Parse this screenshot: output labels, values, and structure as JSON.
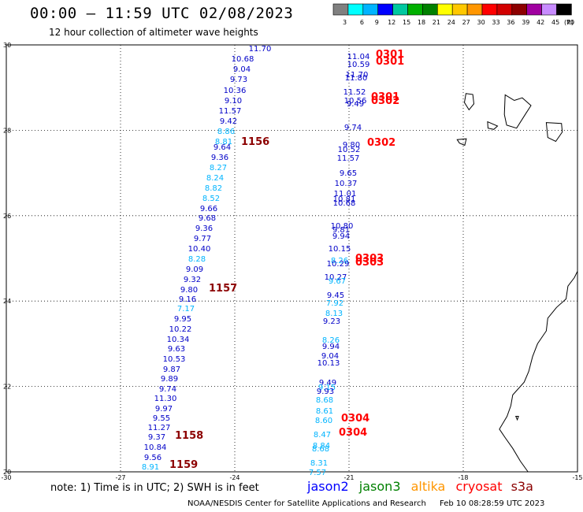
{
  "title": "00:00 – 11:59 UTC 02/08/2023",
  "subtitle": "12 hour collection of altimeter wave heights",
  "colorbar": {
    "unit": "(ft)",
    "labels": [
      "3",
      "6",
      "9",
      "12",
      "15",
      "18",
      "21",
      "24",
      "27",
      "30",
      "33",
      "36",
      "39",
      "42",
      "45",
      "70"
    ],
    "colors": [
      "#808080",
      "#00ffff",
      "#00b4ff",
      "#0000ff",
      "#00c8a0",
      "#00b000",
      "#008000",
      "#ffff00",
      "#ffc800",
      "#ff9600",
      "#ff0000",
      "#d20000",
      "#8c0000",
      "#a000a0",
      "#c88cff",
      "#000000"
    ]
  },
  "axes": {
    "x_ticks": [
      "-30",
      "-27",
      "-24",
      "-21",
      "-18",
      "-15"
    ],
    "y_ticks": [
      "30",
      "28",
      "26",
      "24",
      "22",
      "20"
    ],
    "lon_range": [
      -30,
      -15
    ],
    "lat_range": [
      20,
      30
    ]
  },
  "colors": {
    "blue": "#0000c8",
    "cyan": "#00b4ff",
    "red": "#ff0000",
    "darkred": "#8c0000"
  },
  "track_west": [
    {
      "v": "11.70",
      "c": "blue"
    },
    {
      "v": "10.68",
      "c": "blue"
    },
    {
      "v": "9.04",
      "c": "blue"
    },
    {
      "v": "9.73",
      "c": "blue"
    },
    {
      "v": "10.36",
      "c": "blue"
    },
    {
      "v": "9.10",
      "c": "blue"
    },
    {
      "v": "11.57",
      "c": "blue"
    },
    {
      "v": "9.42",
      "c": "blue"
    },
    {
      "v": "8.86",
      "c": "cyan"
    },
    {
      "v": "8.81",
      "c": "cyan"
    },
    {
      "v": "9.64",
      "c": "blue"
    },
    {
      "v": "9.36",
      "c": "blue"
    },
    {
      "v": "8.27",
      "c": "cyan"
    },
    {
      "v": "8.24",
      "c": "cyan"
    },
    {
      "v": "8.82",
      "c": "cyan"
    },
    {
      "v": "8.52",
      "c": "cyan"
    },
    {
      "v": "9.66",
      "c": "blue"
    },
    {
      "v": "9.68",
      "c": "blue"
    },
    {
      "v": "9.36",
      "c": "blue"
    },
    {
      "v": "9.77",
      "c": "blue"
    },
    {
      "v": "10.40",
      "c": "blue"
    },
    {
      "v": "8.28",
      "c": "cyan"
    },
    {
      "v": "9.09",
      "c": "blue"
    },
    {
      "v": "9.32",
      "c": "blue"
    },
    {
      "v": "9.80",
      "c": "blue"
    },
    {
      "v": "9.16",
      "c": "blue"
    },
    {
      "v": "7.17",
      "c": "cyan"
    },
    {
      "v": "9.95",
      "c": "blue"
    },
    {
      "v": "10.22",
      "c": "blue"
    },
    {
      "v": "10.34",
      "c": "blue"
    },
    {
      "v": "9.63",
      "c": "blue"
    },
    {
      "v": "10.53",
      "c": "blue"
    },
    {
      "v": "9.87",
      "c": "blue"
    },
    {
      "v": "9.89",
      "c": "blue"
    },
    {
      "v": "9.74",
      "c": "blue"
    },
    {
      "v": "11.30",
      "c": "blue"
    },
    {
      "v": "9.97",
      "c": "blue"
    },
    {
      "v": "9.55",
      "c": "blue"
    },
    {
      "v": "11.27",
      "c": "blue"
    },
    {
      "v": "9.37",
      "c": "blue"
    },
    {
      "v": "10.84",
      "c": "blue"
    },
    {
      "v": "9.56",
      "c": "blue"
    },
    {
      "v": "8.91",
      "c": "cyan"
    }
  ],
  "track_east": [
    {
      "v": "11.04",
      "c": "blue"
    },
    {
      "v": "10.59",
      "c": "blue"
    },
    {
      "v": "11.70",
      "c": "blue"
    },
    {
      "v": "11.80",
      "c": "blue"
    },
    {
      "v": "11.52",
      "c": "blue"
    },
    {
      "v": "10.56",
      "c": "blue"
    },
    {
      "v": "9.49",
      "c": "blue"
    },
    {
      "v": "9.74",
      "c": "blue"
    },
    {
      "v": "9.80",
      "c": "blue"
    },
    {
      "v": "10.52",
      "c": "blue"
    },
    {
      "v": "11.57",
      "c": "blue"
    },
    {
      "v": "9.65",
      "c": "blue"
    },
    {
      "v": "10.37",
      "c": "blue"
    },
    {
      "v": "11.01",
      "c": "blue"
    },
    {
      "v": "10.81",
      "c": "blue"
    },
    {
      "v": "10.68",
      "c": "blue"
    },
    {
      "v": "10.80",
      "c": "blue"
    },
    {
      "v": "9.81",
      "c": "blue"
    },
    {
      "v": "9.94",
      "c": "blue"
    },
    {
      "v": "10.15",
      "c": "blue"
    },
    {
      "v": "8.26",
      "c": "cyan"
    },
    {
      "v": "10.29",
      "c": "blue"
    },
    {
      "v": "10.27",
      "c": "blue"
    },
    {
      "v": "9.67",
      "c": "cyan"
    },
    {
      "v": "9.45",
      "c": "blue"
    },
    {
      "v": "7.92",
      "c": "cyan"
    },
    {
      "v": "8.13",
      "c": "cyan"
    },
    {
      "v": "9.23",
      "c": "blue"
    },
    {
      "v": "8.26",
      "c": "cyan"
    },
    {
      "v": "9.94",
      "c": "blue"
    },
    {
      "v": "9.04",
      "c": "blue"
    },
    {
      "v": "10.13",
      "c": "blue"
    },
    {
      "v": "9.49",
      "c": "blue"
    },
    {
      "v": "9.15",
      "c": "cyan"
    },
    {
      "v": "9.93",
      "c": "blue"
    },
    {
      "v": "8.68",
      "c": "cyan"
    },
    {
      "v": "8.61",
      "c": "cyan"
    },
    {
      "v": "8.60",
      "c": "cyan"
    },
    {
      "v": "8.47",
      "c": "cyan"
    },
    {
      "v": "8.84",
      "c": "cyan"
    },
    {
      "v": "8.68",
      "c": "cyan"
    },
    {
      "v": "8.31",
      "c": "cyan"
    },
    {
      "v": "7.57",
      "c": "cyan"
    }
  ],
  "time_labels": [
    {
      "t": "1156",
      "c": "darkred"
    },
    {
      "t": "1157",
      "c": "darkred"
    },
    {
      "t": "1158",
      "c": "darkred"
    },
    {
      "t": "1159",
      "c": "darkred"
    },
    {
      "t": "0301",
      "c": "red"
    },
    {
      "t": "0301",
      "c": "red"
    },
    {
      "t": "0301",
      "c": "red"
    },
    {
      "t": "0302",
      "c": "red"
    },
    {
      "t": "0302",
      "c": "red"
    },
    {
      "t": "0303",
      "c": "red"
    },
    {
      "t": "0303",
      "c": "red"
    },
    {
      "t": "0304",
      "c": "red"
    },
    {
      "t": "0304",
      "c": "red"
    }
  ],
  "footer": {
    "note": "note: 1) Time is in UTC; 2) SWH is in feet",
    "missions": [
      {
        "name": "jason2",
        "color": "#0000ff"
      },
      {
        "name": "jason3",
        "color": "#008000"
      },
      {
        "name": "altika",
        "color": "#ff9600"
      },
      {
        "name": "cryosat",
        "color": "#ff0000"
      },
      {
        "name": "s3a",
        "color": "#8c0000"
      }
    ],
    "credit": "NOAA/NESDIS Center for Satellite Applications and Research",
    "timestamp": "Feb 10 08:28:59 UTC 2023"
  }
}
